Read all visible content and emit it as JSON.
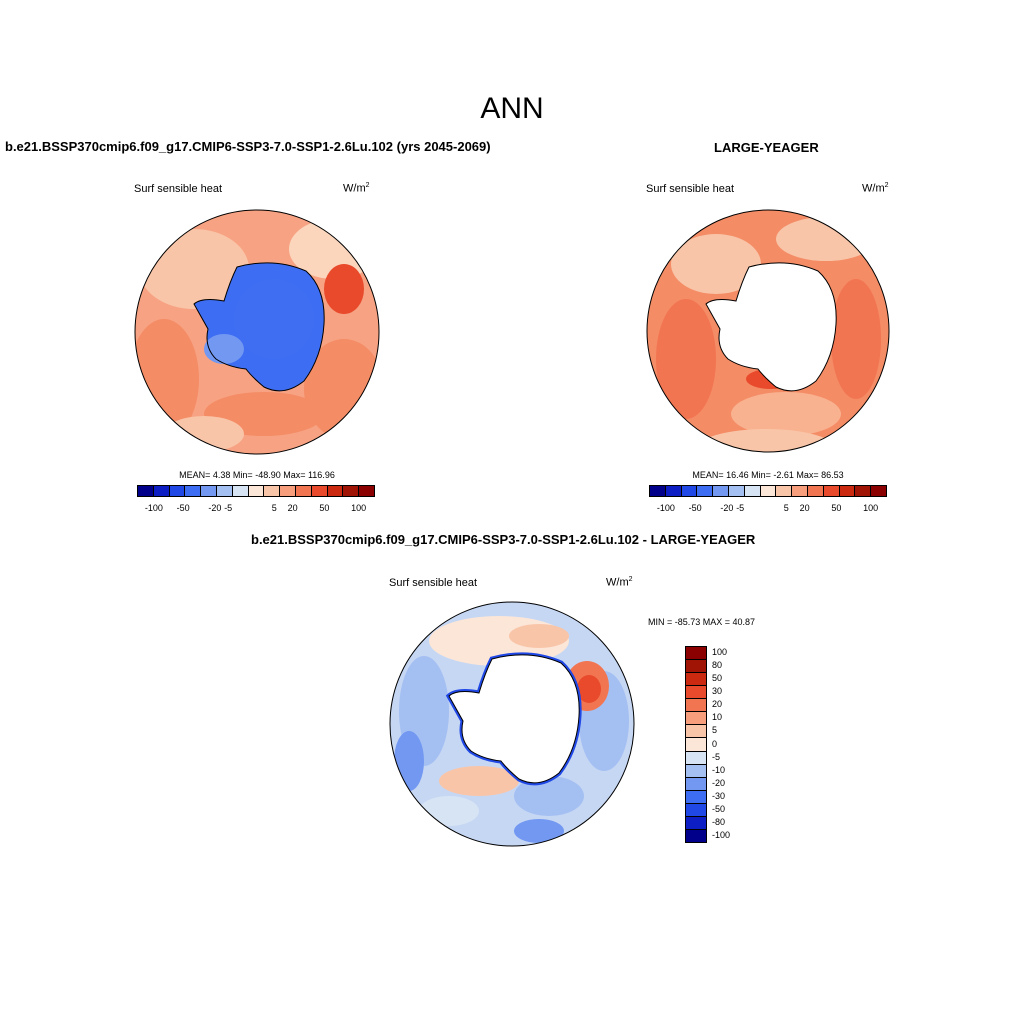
{
  "title": "ANN",
  "palette": [
    "#00008b",
    "#0d1fc4",
    "#1f48e6",
    "#3d6df2",
    "#7298f2",
    "#a4bff2",
    "#d7e4f4",
    "#fbe6d8",
    "#f9c5a8",
    "#f79f7c",
    "#f27551",
    "#e84a2b",
    "#cc2a10",
    "#a01406",
    "#8b0000"
  ],
  "panels": {
    "left": {
      "title": "b.e21.BSSP370cmip6.f09_g17.CMIP6-SSP3-7.0-SSP1-2.6Lu.102 (yrs 2045-2069)",
      "variable": "Surf sensible heat",
      "unit_base": "W/m",
      "unit_exp": "2",
      "stats": "MEAN=   4.38  Min= -48.90  Max= 116.96"
    },
    "right": {
      "title": "LARGE-YEAGER",
      "variable": "Surf sensible heat",
      "unit_base": "W/m",
      "unit_exp": "2",
      "stats": "MEAN=  16.46  Min=  -2.61  Max=  86.53"
    },
    "diff": {
      "title": "b.e21.BSSP370cmip6.f09_g17.CMIP6-SSP3-7.0-SSP1-2.6Lu.102 - LARGE-YEAGER",
      "variable": "Surf sensible heat",
      "unit_base": "W/m",
      "unit_exp": "2",
      "stats": "MIN = -85.73 MAX =  40.87"
    }
  },
  "hbar_ticks": [
    "-100",
    "-50",
    "-20",
    "-5",
    "5",
    "20",
    "50",
    "100"
  ],
  "vbar_ticks": [
    "100",
    "80",
    "50",
    "30",
    "20",
    "10",
    "5",
    "0",
    "-5",
    "-10",
    "-20",
    "-30",
    "-50",
    "-80",
    "-100"
  ]
}
